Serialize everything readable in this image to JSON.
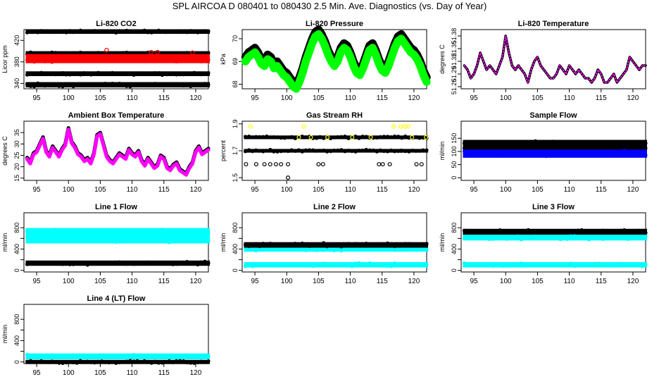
{
  "figure": {
    "title": "SPL   AIRCOA D   080401 to 080430   2.5 Min. Ave. Diagnostics (vs. Day of Year)"
  },
  "chart_data": [
    {
      "type": "scatter",
      "title": "Li-820 CO2",
      "ylabel": "Licor ppm",
      "xlim": [
        93,
        122
      ],
      "xticks": [
        95,
        100,
        105,
        110,
        115,
        120
      ],
      "ylim": [
        330,
        440
      ],
      "yticks": [
        340,
        380,
        420
      ],
      "series": [
        {
          "color": "#000000",
          "bands": [
            [
              435.5,
              437
            ],
            [
              394.5,
              396.5
            ],
            [
              357,
              359
            ],
            [
              336,
              339
            ]
          ]
        },
        {
          "color": "#ff0000",
          "bands": [
            [
              381,
              391
            ]
          ],
          "outliers": [
            [
              106,
              402
            ],
            [
              113,
              398
            ],
            [
              114,
              398
            ],
            [
              119.5,
              397
            ]
          ]
        }
      ]
    },
    {
      "type": "line",
      "title": "Li-820 Pressure",
      "ylabel": "kPa",
      "xlim": [
        93,
        122
      ],
      "xticks": [
        95,
        100,
        105,
        110,
        115,
        120
      ],
      "ylim": [
        67.8,
        70.4
      ],
      "yticks": [
        68.0,
        69.0,
        70.0
      ],
      "series": [
        {
          "color": "#000000",
          "thickness": 0.35,
          "x": [
            93.5,
            94,
            94.5,
            95,
            95.5,
            96,
            96.5,
            97,
            97.5,
            98,
            98.5,
            99,
            99.5,
            100,
            100.5,
            101,
            101.5,
            102,
            102.5,
            103,
            103.5,
            104,
            104.5,
            105,
            105.5,
            106,
            106.5,
            107,
            107.5,
            108,
            108.5,
            109,
            109.5,
            110,
            110.5,
            111,
            111.5,
            112,
            112.5,
            113,
            113.5,
            114,
            114.5,
            115,
            115.5,
            116,
            116.5,
            117,
            117.5,
            118,
            118.5,
            119,
            119.5,
            120,
            120.5,
            121,
            121.5,
            122
          ],
          "y": [
            69.2,
            69.4,
            69.5,
            69.6,
            69.4,
            69.1,
            69.0,
            69.3,
            69.2,
            68.9,
            69.0,
            68.8,
            68.6,
            68.5,
            68.3,
            68.1,
            68.0,
            68.3,
            68.7,
            69.2,
            69.6,
            70.0,
            70.3,
            70.4,
            70.2,
            69.9,
            69.5,
            69.2,
            69.0,
            69.2,
            69.6,
            69.8,
            69.7,
            69.4,
            69.0,
            68.7,
            68.6,
            68.9,
            69.3,
            69.7,
            69.8,
            69.5,
            69.1,
            68.8,
            68.7,
            69.0,
            69.4,
            69.8,
            70.1,
            70.2,
            70.0,
            69.8,
            69.6,
            69.5,
            69.3,
            69.0,
            68.6,
            68.3
          ]
        },
        {
          "color": "#00ff00",
          "offset": -0.2
        }
      ]
    },
    {
      "type": "line",
      "title": "Li-820 Temperature",
      "ylabel": "degrees C",
      "xlim": [
        93,
        122
      ],
      "xticks": [
        95,
        100,
        105,
        110,
        115,
        120
      ],
      "ylim": [
        51.255,
        51.395
      ],
      "yticks": [
        51.26,
        51.29,
        51.32,
        51.35,
        51.38
      ],
      "ytick_labels": [
        "51.26",
        "51.29",
        "51.32",
        "51.35",
        "51.38"
      ],
      "series": [
        {
          "color": "#000000",
          "thickness": 0.006,
          "x": [
            93.5,
            94,
            94.5,
            95,
            95.5,
            96,
            96.5,
            97,
            97.5,
            98,
            98.5,
            99,
            99.5,
            100,
            100.5,
            101,
            101.5,
            102,
            102.5,
            103,
            103.5,
            104,
            104.5,
            105,
            105.5,
            106,
            106.5,
            107,
            107.5,
            108,
            108.5,
            109,
            109.5,
            110,
            110.5,
            111,
            111.5,
            112,
            112.5,
            113,
            113.5,
            114,
            114.5,
            115,
            115.5,
            116,
            116.5,
            117,
            117.5,
            118,
            118.5,
            119,
            119.5,
            120,
            120.5,
            121,
            121.5,
            122
          ],
          "y": [
            51.31,
            51.3,
            51.28,
            51.29,
            51.31,
            51.34,
            51.32,
            51.3,
            51.31,
            51.3,
            51.29,
            51.31,
            51.33,
            51.38,
            51.34,
            51.31,
            51.3,
            51.31,
            51.3,
            51.29,
            51.27,
            51.3,
            51.32,
            51.33,
            51.31,
            51.3,
            51.29,
            51.28,
            51.28,
            51.29,
            51.31,
            51.3,
            51.29,
            51.31,
            51.3,
            51.29,
            51.3,
            51.29,
            51.28,
            51.28,
            51.27,
            51.28,
            51.3,
            51.29,
            51.27,
            51.27,
            51.28,
            51.29,
            51.27,
            51.28,
            51.29,
            51.3,
            51.33,
            51.32,
            51.31,
            51.3,
            51.31,
            51.31
          ]
        },
        {
          "color": "#ff00ff",
          "dotted": true
        }
      ]
    },
    {
      "type": "line",
      "title": "Ambient Box Temperature",
      "ylabel": "degrees C",
      "xlim": [
        93,
        122
      ],
      "xticks": [
        95,
        100,
        105,
        110,
        115,
        120
      ],
      "ylim": [
        14,
        40
      ],
      "yticks": [
        15,
        20,
        25,
        30,
        35
      ],
      "series": [
        {
          "color": "#000000",
          "thickness": 1.6,
          "x": [
            93.5,
            94,
            94.5,
            95,
            95.5,
            96,
            96.5,
            97,
            97.5,
            98,
            98.5,
            99,
            99.5,
            100,
            100.5,
            101,
            101.5,
            102,
            102.5,
            103,
            103.5,
            104,
            104.5,
            105,
            105.5,
            106,
            106.5,
            107,
            107.5,
            108,
            108.5,
            109,
            109.5,
            110,
            110.5,
            111,
            111.5,
            112,
            112.5,
            113,
            113.5,
            114,
            114.5,
            115,
            115.5,
            116,
            116.5,
            117,
            117.5,
            118,
            118.5,
            119,
            119.5,
            120,
            120.5,
            121,
            121.5,
            122
          ],
          "y": [
            24,
            22,
            26,
            27,
            30,
            33,
            27,
            25,
            29,
            27,
            25,
            28,
            30,
            37,
            31,
            29,
            26,
            25,
            23,
            24,
            22,
            26,
            34,
            35,
            30,
            25,
            23,
            22,
            24,
            26,
            25,
            24,
            28,
            26,
            25,
            27,
            23,
            21,
            24,
            22,
            20,
            21,
            25,
            24,
            20,
            19,
            21,
            22,
            19,
            18,
            17,
            20,
            22,
            27,
            29,
            26,
            27,
            28
          ]
        },
        {
          "color": "#ff00ff",
          "offset": -0.6
        }
      ]
    },
    {
      "type": "scatter",
      "title": "Gas Stream RH",
      "ylabel": "percent",
      "xlim": [
        93,
        122
      ],
      "xticks": [
        95,
        100,
        105,
        110,
        115,
        120
      ],
      "ylim": [
        1.48,
        1.92
      ],
      "yticks": [
        1.5,
        1.7,
        1.9
      ],
      "series": [
        {
          "color": "#000000",
          "bands": [
            [
              1.8,
              1.8
            ],
            [
              1.7,
              1.7
            ]
          ],
          "points": [
            [
              93.6,
              1.6
            ],
            [
              95.2,
              1.6
            ],
            [
              96.5,
              1.6
            ],
            [
              97.4,
              1.6
            ],
            [
              98.3,
              1.6
            ],
            [
              99.1,
              1.6
            ],
            [
              100.2,
              1.6
            ],
            [
              105,
              1.6
            ],
            [
              105.7,
              1.6
            ],
            [
              114.5,
              1.6
            ],
            [
              115.1,
              1.6
            ],
            [
              116.2,
              1.6
            ],
            [
              120.4,
              1.6
            ],
            [
              121.2,
              1.6
            ],
            [
              100.2,
              1.5
            ],
            [
              118,
              1.7
            ]
          ]
        },
        {
          "color": "#ffff00",
          "points": [
            [
              94.3,
              1.88
            ],
            [
              102.7,
              1.88
            ],
            [
              116.8,
              1.88
            ],
            [
              117.9,
              1.88
            ],
            [
              118.6,
              1.88
            ],
            [
              119.1,
              1.88
            ],
            [
              101.9,
              1.8
            ],
            [
              103.8,
              1.8
            ],
            [
              106.4,
              1.8
            ],
            [
              110.3,
              1.8
            ],
            [
              113.2,
              1.8
            ],
            [
              119.7,
              1.8
            ],
            [
              121.9,
              1.8
            ]
          ]
        }
      ]
    },
    {
      "type": "scatter",
      "title": "Sample Flow",
      "ylabel": "ml/min",
      "xlim": [
        93,
        122
      ],
      "xticks": [
        95,
        100,
        105,
        110,
        115,
        120
      ],
      "ylim": [
        -10,
        215
      ],
      "yticks": [
        0,
        50,
        100,
        150
      ],
      "series": [
        {
          "color": "#000000",
          "bands": [
            [
              125,
              137
            ],
            [
              107,
              113
            ]
          ]
        },
        {
          "color": "#0000ff",
          "bands": [
            [
              83,
              100
            ]
          ]
        }
      ]
    },
    {
      "type": "scatter",
      "title": "Line 1 Flow",
      "ylabel": "ml/min",
      "xlim": [
        93,
        122
      ],
      "xticks": [
        95,
        100,
        105,
        110,
        115,
        120
      ],
      "ylim": [
        -30,
        1080
      ],
      "yticks": [
        0,
        200,
        400,
        600,
        800
      ],
      "ytick_labels": [
        "0",
        "",
        "400",
        "",
        "800"
      ],
      "series": [
        {
          "color": "#00ffff",
          "bands": [
            [
              640,
              760
            ],
            [
              540,
              610
            ]
          ]
        },
        {
          "color": "#000000",
          "bands": [
            [
              120,
              150
            ]
          ]
        }
      ]
    },
    {
      "type": "scatter",
      "title": "Line 2 Flow",
      "ylabel": "ml/min",
      "xlim": [
        93,
        122
      ],
      "xticks": [
        95,
        100,
        105,
        110,
        115,
        120
      ],
      "ylim": [
        -30,
        1080
      ],
      "yticks": [
        0,
        200,
        400,
        600,
        800
      ],
      "ytick_labels": [
        "0",
        "",
        "400",
        "",
        "800"
      ],
      "series": [
        {
          "color": "#00ffff",
          "bands": [
            [
              385,
              425
            ],
            [
              90,
              120
            ]
          ]
        },
        {
          "color": "#000000",
          "bands": [
            [
              460,
              495
            ]
          ]
        }
      ]
    },
    {
      "type": "scatter",
      "title": "Line 3 Flow",
      "ylabel": "ml/min",
      "xlim": [
        93,
        122
      ],
      "xticks": [
        95,
        100,
        105,
        110,
        115,
        120
      ],
      "ylim": [
        -30,
        1080
      ],
      "yticks": [
        0,
        200,
        400,
        600,
        800
      ],
      "ytick_labels": [
        "0",
        "",
        "400",
        "",
        "800"
      ],
      "series": [
        {
          "color": "#000000",
          "bands": [
            [
              700,
              745
            ]
          ]
        },
        {
          "color": "#00ffff",
          "bands": [
            [
              595,
              635
            ],
            [
              90,
              120
            ]
          ]
        }
      ]
    },
    {
      "type": "scatter",
      "title": "Line 4 (LT) Flow",
      "ylabel": "ml/min",
      "xlim": [
        93,
        122
      ],
      "xticks": [
        95,
        100,
        105,
        110,
        115,
        120
      ],
      "ylim": [
        -30,
        1080
      ],
      "yticks": [
        0,
        200,
        400,
        600,
        800
      ],
      "ytick_labels": [
        "0",
        "",
        "400",
        "",
        "800"
      ],
      "series": [
        {
          "color": "#00ffff",
          "bands": [
            [
              85,
              125
            ]
          ]
        },
        {
          "color": "#000000",
          "bands": [
            [
              -5,
              5
            ]
          ]
        }
      ]
    }
  ]
}
